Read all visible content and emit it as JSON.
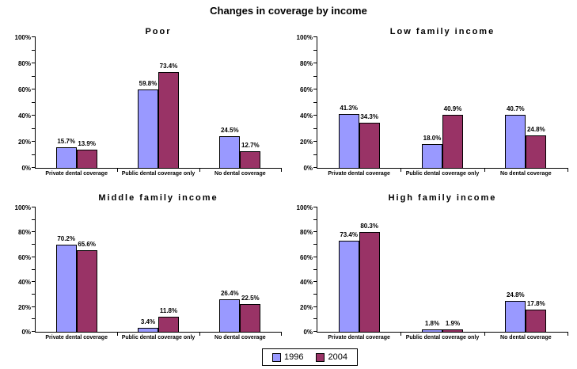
{
  "title": "Changes in coverage by income",
  "colors": {
    "series_1996": "#9999FF",
    "series_2004": "#993366",
    "bar_border": "#000000",
    "axis": "#000000",
    "background": "#FFFFFF"
  },
  "legend": {
    "position": "bottom-center",
    "items": [
      {
        "label": "1996",
        "color": "#9999FF"
      },
      {
        "label": "2004",
        "color": "#993366"
      }
    ]
  },
  "chart_data": [
    {
      "type": "bar",
      "title": "Poor",
      "categories": [
        "Private dental coverage",
        "Public dental coverage only",
        "No dental coverage"
      ],
      "series": [
        {
          "name": "1996",
          "values": [
            15.7,
            59.8,
            24.5
          ]
        },
        {
          "name": "2004",
          "values": [
            13.9,
            73.4,
            12.7
          ]
        }
      ],
      "ylim": [
        0,
        100
      ],
      "ytick_step": 20,
      "minor_tick_step": 10,
      "ytick_labels": [
        "0%",
        "20%",
        "40%",
        "60%",
        "80%",
        "100%"
      ],
      "grid": false,
      "value_label_format": "one_decimal_percent"
    },
    {
      "type": "bar",
      "title": "Low family income",
      "categories": [
        "Private dental coverage",
        "Public dental coverage only",
        "No dental coverage"
      ],
      "series": [
        {
          "name": "1996",
          "values": [
            41.3,
            18.0,
            40.7
          ]
        },
        {
          "name": "2004",
          "values": [
            34.3,
            40.9,
            24.8
          ]
        }
      ],
      "ylim": [
        0,
        100
      ],
      "ytick_step": 20,
      "minor_tick_step": 10,
      "ytick_labels": [
        "0%",
        "20%",
        "40%",
        "60%",
        "80%",
        "100%"
      ],
      "grid": false,
      "value_label_format": "one_decimal_percent"
    },
    {
      "type": "bar",
      "title": "Middle family income",
      "categories": [
        "Private dental coverage",
        "Public dental coverage only",
        "No dental coverage"
      ],
      "series": [
        {
          "name": "1996",
          "values": [
            70.2,
            3.4,
            26.4
          ]
        },
        {
          "name": "2004",
          "values": [
            65.6,
            11.8,
            22.5
          ]
        }
      ],
      "ylim": [
        0,
        100
      ],
      "ytick_step": 20,
      "minor_tick_step": 10,
      "ytick_labels": [
        "0%",
        "20%",
        "40%",
        "60%",
        "80%",
        "100%"
      ],
      "grid": false,
      "value_label_format": "one_decimal_percent"
    },
    {
      "type": "bar",
      "title": "High family income",
      "categories": [
        "Private dental coverage",
        "Public dental coverage only",
        "No dental coverage"
      ],
      "series": [
        {
          "name": "1996",
          "values": [
            73.4,
            1.8,
            24.8
          ]
        },
        {
          "name": "2004",
          "values": [
            80.3,
            1.9,
            17.8
          ]
        }
      ],
      "ylim": [
        0,
        100
      ],
      "ytick_step": 20,
      "minor_tick_step": 10,
      "ytick_labels": [
        "0%",
        "20%",
        "40%",
        "60%",
        "80%",
        "100%"
      ],
      "grid": false,
      "value_label_format": "one_decimal_percent"
    }
  ]
}
